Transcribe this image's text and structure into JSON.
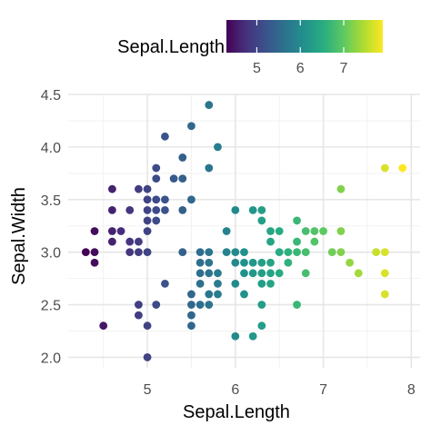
{
  "chart_data": {
    "type": "scatter",
    "xlabel": "Sepal.Length",
    "ylabel": "Sepal.Width",
    "xlim": [
      4.1,
      8.1
    ],
    "ylim": [
      1.9,
      4.5
    ],
    "x_ticks": [
      5,
      6,
      7,
      8
    ],
    "y_ticks": [
      2.0,
      2.5,
      3.0,
      3.5,
      4.0,
      4.5
    ],
    "x_tick_labels": [
      "5",
      "6",
      "7",
      "8"
    ],
    "y_tick_labels": [
      "2.0",
      "2.5",
      "3.0",
      "3.5",
      "4.0",
      "4.5"
    ],
    "grid": true,
    "color_by": "x",
    "colorscale": "viridis",
    "legend": {
      "title": "Sepal.Length",
      "position": "top",
      "range": [
        4.3,
        7.9
      ],
      "ticks": [
        5,
        6,
        7
      ],
      "tick_labels": [
        "5",
        "6",
        "7"
      ]
    },
    "points": [
      [
        4.3,
        3.0
      ],
      [
        4.4,
        2.9
      ],
      [
        4.4,
        3.0
      ],
      [
        4.4,
        3.2
      ],
      [
        4.5,
        2.3
      ],
      [
        4.6,
        3.1
      ],
      [
        4.6,
        3.2
      ],
      [
        4.6,
        3.4
      ],
      [
        4.6,
        3.6
      ],
      [
        4.7,
        3.2
      ],
      [
        4.8,
        3.0
      ],
      [
        4.8,
        3.1
      ],
      [
        4.8,
        3.4
      ],
      [
        4.9,
        2.4
      ],
      [
        4.9,
        2.5
      ],
      [
        4.9,
        3.0
      ],
      [
        4.9,
        3.1
      ],
      [
        4.9,
        3.6
      ],
      [
        5.0,
        2.0
      ],
      [
        5.0,
        2.3
      ],
      [
        5.0,
        3.0
      ],
      [
        5.0,
        3.2
      ],
      [
        5.0,
        3.3
      ],
      [
        5.0,
        3.4
      ],
      [
        5.0,
        3.5
      ],
      [
        5.0,
        3.6
      ],
      [
        5.1,
        2.5
      ],
      [
        5.1,
        3.3
      ],
      [
        5.1,
        3.4
      ],
      [
        5.1,
        3.5
      ],
      [
        5.1,
        3.7
      ],
      [
        5.1,
        3.8
      ],
      [
        5.2,
        2.7
      ],
      [
        5.2,
        3.4
      ],
      [
        5.2,
        3.5
      ],
      [
        5.2,
        4.1
      ],
      [
        5.3,
        3.7
      ],
      [
        5.4,
        3.0
      ],
      [
        5.4,
        3.4
      ],
      [
        5.4,
        3.7
      ],
      [
        5.4,
        3.9
      ],
      [
        5.5,
        2.3
      ],
      [
        5.5,
        2.4
      ],
      [
        5.5,
        2.5
      ],
      [
        5.5,
        2.6
      ],
      [
        5.5,
        3.5
      ],
      [
        5.5,
        4.2
      ],
      [
        5.6,
        2.5
      ],
      [
        5.6,
        2.7
      ],
      [
        5.6,
        2.8
      ],
      [
        5.6,
        2.9
      ],
      [
        5.6,
        3.0
      ],
      [
        5.7,
        2.5
      ],
      [
        5.7,
        2.6
      ],
      [
        5.7,
        2.8
      ],
      [
        5.7,
        2.9
      ],
      [
        5.7,
        3.0
      ],
      [
        5.7,
        3.8
      ],
      [
        5.7,
        4.4
      ],
      [
        5.8,
        2.6
      ],
      [
        5.8,
        2.7
      ],
      [
        5.8,
        2.8
      ],
      [
        5.8,
        4.0
      ],
      [
        5.9,
        3.0
      ],
      [
        5.9,
        3.2
      ],
      [
        6.0,
        2.2
      ],
      [
        6.0,
        2.7
      ],
      [
        6.0,
        2.9
      ],
      [
        6.0,
        3.0
      ],
      [
        6.0,
        3.4
      ],
      [
        6.1,
        2.6
      ],
      [
        6.1,
        2.8
      ],
      [
        6.1,
        2.9
      ],
      [
        6.1,
        3.0
      ],
      [
        6.2,
        2.2
      ],
      [
        6.2,
        2.8
      ],
      [
        6.2,
        2.9
      ],
      [
        6.2,
        3.4
      ],
      [
        6.3,
        2.3
      ],
      [
        6.3,
        2.5
      ],
      [
        6.3,
        2.7
      ],
      [
        6.3,
        2.8
      ],
      [
        6.3,
        2.9
      ],
      [
        6.3,
        3.3
      ],
      [
        6.3,
        3.4
      ],
      [
        6.4,
        2.7
      ],
      [
        6.4,
        2.8
      ],
      [
        6.4,
        2.9
      ],
      [
        6.4,
        3.1
      ],
      [
        6.4,
        3.2
      ],
      [
        6.5,
        2.8
      ],
      [
        6.5,
        3.0
      ],
      [
        6.5,
        3.2
      ],
      [
        6.6,
        2.9
      ],
      [
        6.6,
        3.0
      ],
      [
        6.7,
        2.5
      ],
      [
        6.7,
        3.0
      ],
      [
        6.7,
        3.1
      ],
      [
        6.7,
        3.3
      ],
      [
        6.8,
        2.8
      ],
      [
        6.8,
        3.0
      ],
      [
        6.8,
        3.2
      ],
      [
        6.9,
        3.1
      ],
      [
        6.9,
        3.2
      ],
      [
        7.0,
        3.2
      ],
      [
        7.1,
        3.0
      ],
      [
        7.2,
        3.0
      ],
      [
        7.2,
        3.2
      ],
      [
        7.2,
        3.6
      ],
      [
        7.3,
        2.9
      ],
      [
        7.4,
        2.8
      ],
      [
        7.6,
        3.0
      ],
      [
        7.7,
        2.6
      ],
      [
        7.7,
        2.8
      ],
      [
        7.7,
        3.0
      ],
      [
        7.7,
        3.8
      ],
      [
        7.9,
        3.8
      ]
    ]
  }
}
